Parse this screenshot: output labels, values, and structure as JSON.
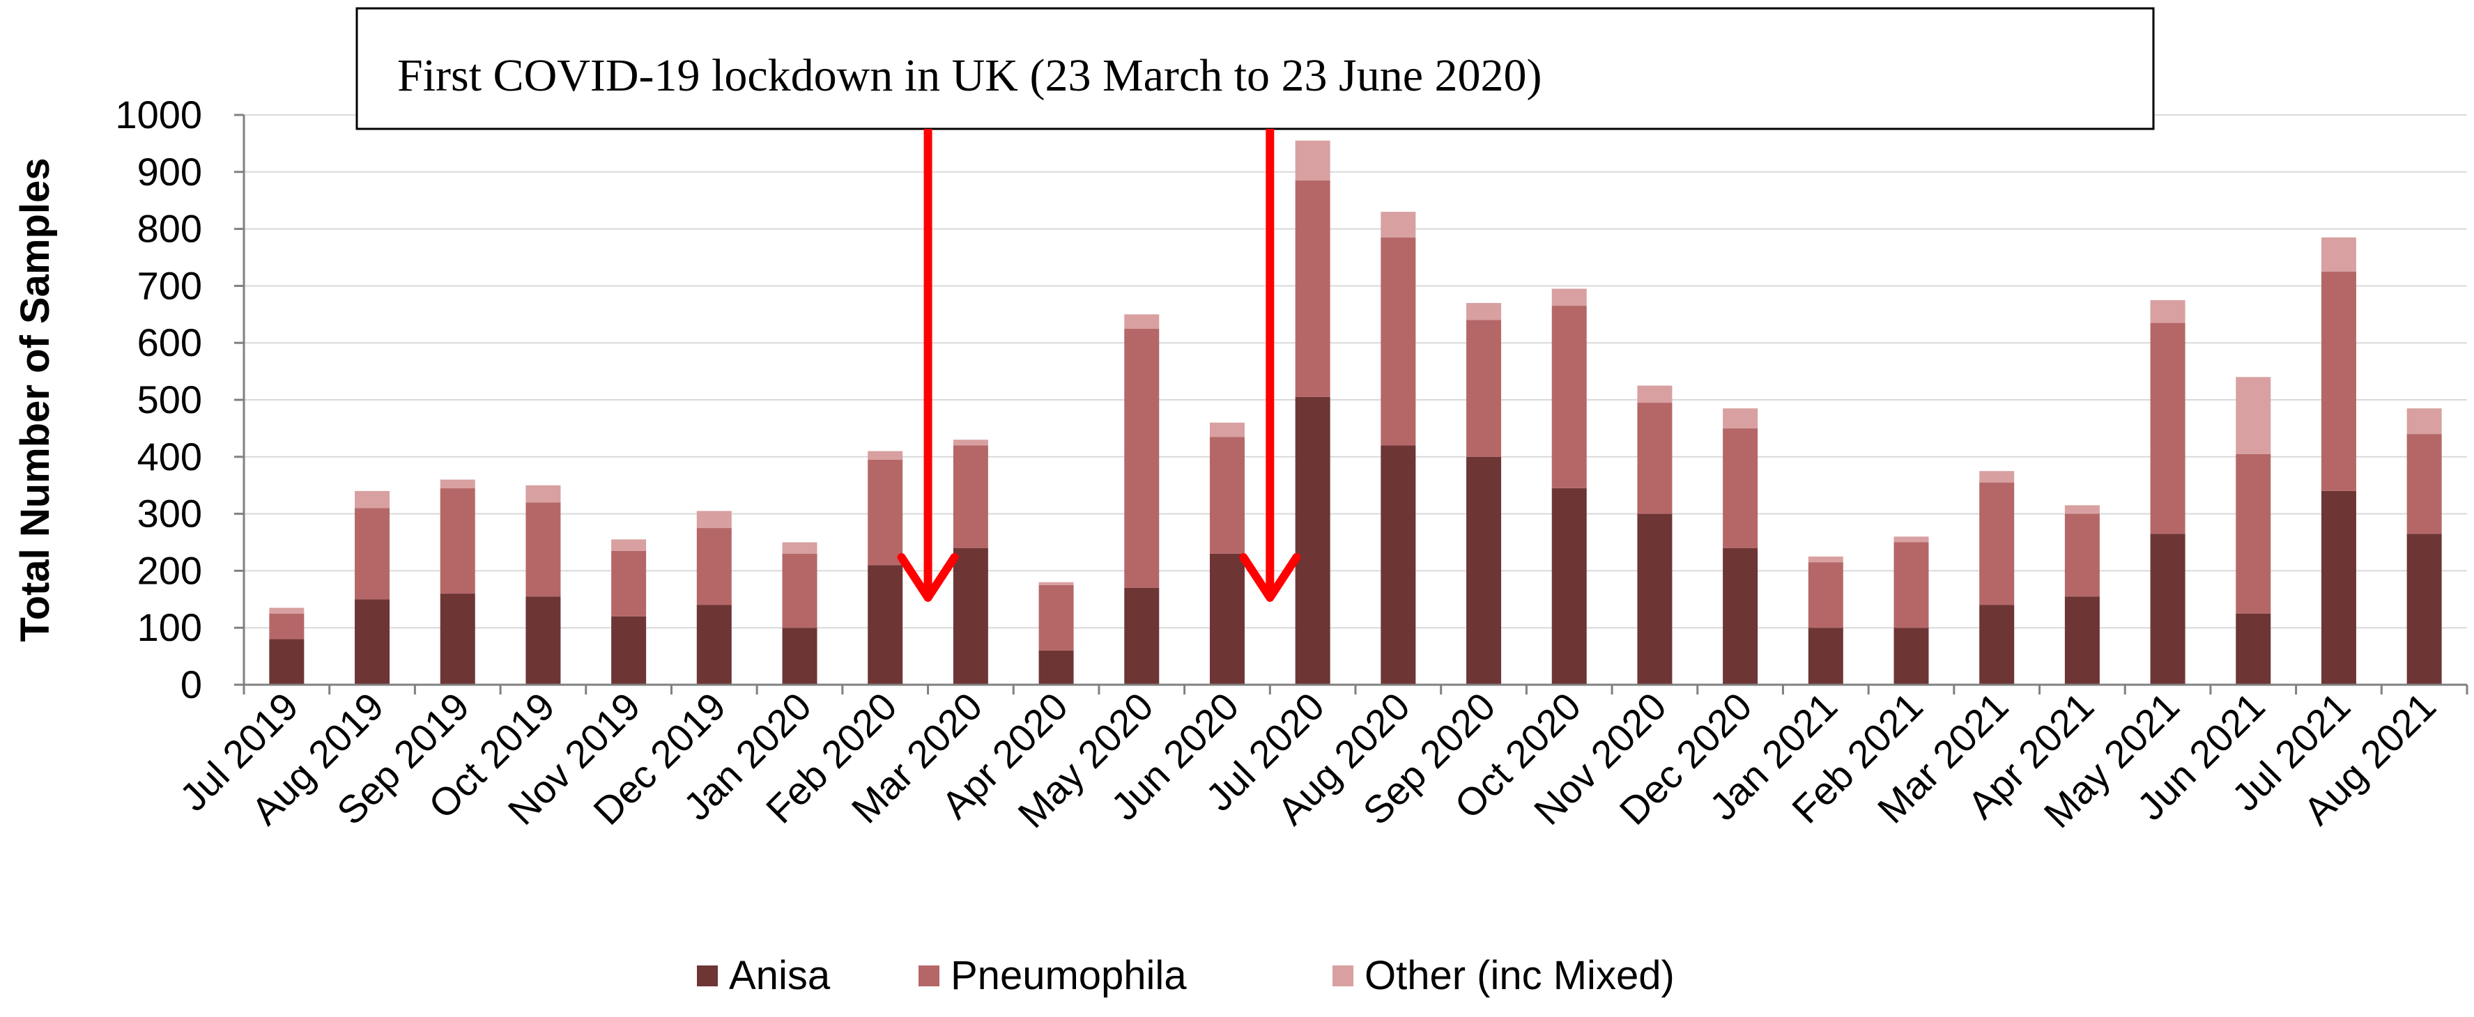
{
  "chart_data": {
    "type": "bar",
    "stacked": true,
    "ylabel": "Total Number of Samples",
    "xlabel": "",
    "ylim": [
      0,
      1000
    ],
    "yticks": [
      0,
      100,
      200,
      300,
      400,
      500,
      600,
      700,
      800,
      900,
      1000
    ],
    "grid": true,
    "legend_position": "bottom",
    "categories": [
      "Jul 2019",
      "Aug 2019",
      "Sep 2019",
      "Oct 2019",
      "Nov 2019",
      "Dec 2019",
      "Jan 2020",
      "Feb 2020",
      "Mar 2020",
      "Apr 2020",
      "May 2020",
      "Jun 2020",
      "Jul 2020",
      "Aug 2020",
      "Sep 2020",
      "Oct 2020",
      "Nov 2020",
      "Dec 2020",
      "Jan 2021",
      "Feb 2021",
      "Mar 2021",
      "Apr 2021",
      "May 2021",
      "Jun 2021",
      "Jul 2021",
      "Aug 2021"
    ],
    "series": [
      {
        "name": "Anisa",
        "color": "#6e3535",
        "values": [
          80,
          150,
          160,
          155,
          120,
          140,
          100,
          210,
          240,
          60,
          170,
          230,
          505,
          420,
          400,
          345,
          300,
          240,
          100,
          100,
          140,
          155,
          265,
          125,
          340,
          265
        ]
      },
      {
        "name": "Pneumophila",
        "color": "#b56767",
        "values": [
          45,
          160,
          185,
          165,
          115,
          135,
          130,
          185,
          180,
          115,
          455,
          205,
          380,
          365,
          240,
          320,
          195,
          210,
          115,
          150,
          215,
          145,
          370,
          280,
          385,
          175
        ]
      },
      {
        "name": "Other (inc Mixed)",
        "color": "#d8a0a0",
        "values": [
          10,
          30,
          15,
          30,
          20,
          30,
          20,
          15,
          10,
          5,
          25,
          25,
          70,
          45,
          30,
          30,
          30,
          35,
          10,
          10,
          20,
          15,
          40,
          135,
          60,
          45
        ]
      }
    ],
    "annotation": {
      "text": "First COVID-19 lockdown in UK (23 March to 23 June 2020)",
      "arrows_between": [
        [
          "Feb 2020",
          "Mar 2020"
        ],
        [
          "Jun 2020",
          "Jul 2020"
        ]
      ],
      "arrow_color": "#ff0000"
    }
  }
}
